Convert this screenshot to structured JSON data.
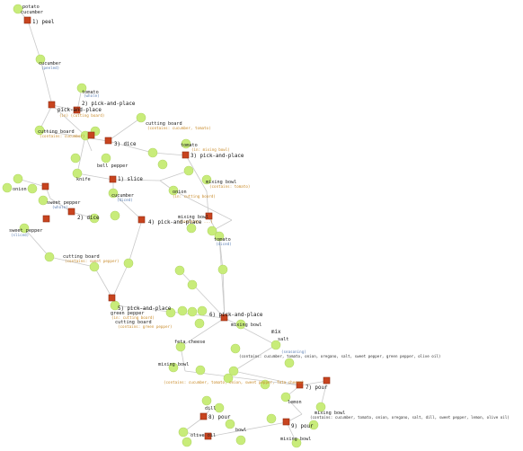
{
  "graph": {
    "colors": {
      "object_node": "#c8ec7a",
      "action_node": "#c8441f",
      "edge": "#c9c9c9",
      "sub_label_blue": "#5b7fb4",
      "sub_label_orange": "#c98b2a"
    },
    "labels": {
      "potato_top": "potato",
      "cucumber_top": "cucumber",
      "peel": "1) peel",
      "cucumber_1": "cucumber",
      "cucumber_1_sub": "(peeled)",
      "tomato": "tomato",
      "tomato_sub": "(whole)",
      "pnp1": "2) pick-and-place",
      "pnp1_sub": "(in) (cutting board)",
      "cutting_board_1": "cutting board",
      "cutting_board_1_sub": "(contains: cucumber, tomato)",
      "cutting_board_2": "cutting board",
      "cutting_board_2_sub": "(contains: cucumber)",
      "pnp_label_a": "pick-and-place",
      "dice": "3) dice",
      "dice2": "2) dice",
      "tomato_2": "tomato",
      "tomato_2_sub": "(in: mixing bowl)",
      "pnp_right_a": "3) pick-and-place",
      "mixing_bowl_a": "mixing bowl",
      "mixing_bowl_a_sub": "(contains: tomato)",
      "bell_pepper": "bell pepper",
      "onion": "onion",
      "knife": "knife",
      "slice": "1) slice",
      "sweet_pepper": "sweet pepper",
      "sweet_pepper_sub": "(whole)",
      "dice_left": "2) dice",
      "cucumber_2": "cucumber",
      "cucumber_2_sub": "(diced)",
      "onion_2": "onion",
      "onion_2_sub": "(in: cutting board)",
      "mixing_bowl_b": "mixing bowl",
      "mixing_bowl_b_sub": "(contains: ...)",
      "tomato_3": "tomato",
      "tomato_3_sub": "(diced)",
      "pnp_mid": "4) pick-and-place",
      "cutting_board_3": "cutting board",
      "cutting_board_3_sub": "(contains: sweet pepper)",
      "sweet_pepper_2": "sweet pepper",
      "sweet_pepper_2_sub": "(sliced)",
      "pnp_lower": "5) pick-and-place",
      "green_pepper": "green pepper",
      "green_pepper_sub": "(in: cutting board)",
      "cutting_board_4": "cutting board",
      "cutting_board_4_sub": "(contains: green pepper)",
      "pnp_center": "6) pick-and-place",
      "mixing_bowl_c": "mixing bowl",
      "mixing_bowl_c_sub": "(contains: ...)",
      "mix": "mix",
      "salt": "salt",
      "seasoning": "(seasoning)",
      "feta_cheese": "feta cheese",
      "mixing_bowl_d": "mixing bowl",
      "mixing_bowl_d_sub": "(contains: cucumber, tomato, onion, sweet pepper, feta cheese)",
      "mixing_bowl_e": "mixing bowl",
      "mixing_bowl_e_sub": "(contains: cucumber, tomato, onion, oregano, salt, sweet pepper, green pepper, olive oil)",
      "lemon": "lemon",
      "pour": "7) pour",
      "dill": "dill",
      "dill_pour": "8) pour",
      "mixing_bowl_f": "mixing bowl",
      "mixing_bowl_f_sub": "(contains: cucumber, tomato, onion, oregano, salt, dill, sweet pepper, lemon, olive oil)",
      "bowl_final": "bowl",
      "olive_oil": "olive oil",
      "pour_final": "9) pour",
      "mixing_bowl_final": "mixing bowl"
    }
  }
}
